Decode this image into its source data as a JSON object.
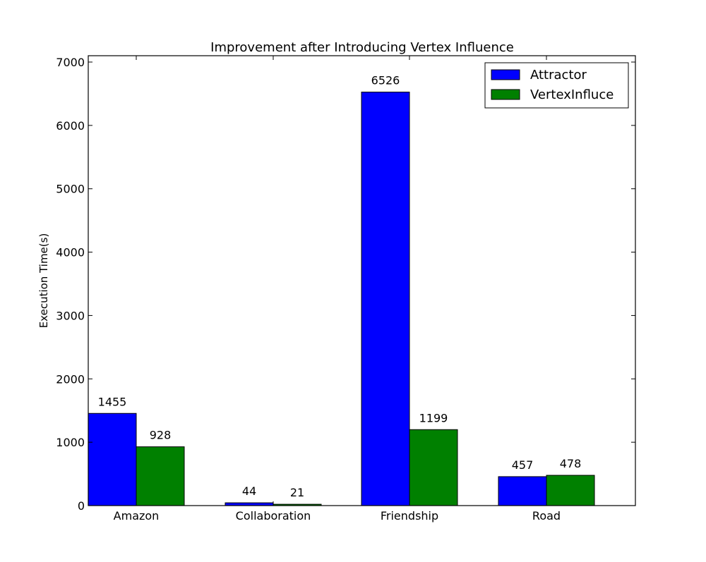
{
  "chart_data": {
    "type": "bar",
    "title": "Improvement after Introducing Vertex Influence",
    "xlabel": "",
    "ylabel": "Execution Time(s)",
    "ylim": [
      0,
      7100
    ],
    "yticks": [
      0,
      1000,
      2000,
      3000,
      4000,
      5000,
      6000,
      7000
    ],
    "categories": [
      "Amazon",
      "Collaboration",
      "Friendship",
      "Road"
    ],
    "series": [
      {
        "name": "Attractor",
        "color": "#0000ff",
        "values": [
          1455,
          44,
          6526,
          457
        ]
      },
      {
        "name": "VertexInfluce",
        "color": "#008000",
        "values": [
          928,
          21,
          1199,
          478
        ]
      }
    ],
    "legend": {
      "position": "top-right"
    },
    "grid": false
  }
}
